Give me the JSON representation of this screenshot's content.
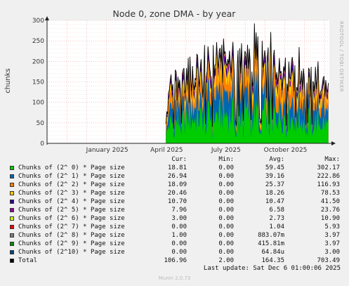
{
  "chart_data": {
    "type": "area",
    "title": "Node 0, zone DMA - by year",
    "ylabel": "chunks",
    "side_label": "RRDTOOL / TOBI OETIKER",
    "ylim": [
      0,
      300
    ],
    "yticks": [
      "0",
      "50",
      "100",
      "150",
      "200",
      "250",
      "300"
    ],
    "xticks": [
      "January 2025",
      "April 2025",
      "July 2025",
      "October 2025"
    ],
    "grid": true,
    "data_start_month": 3.0,
    "data_end_month": 11.2,
    "series": [
      {
        "name": "Chunks of (2^ 0) * Page size",
        "color": "#00cc00",
        "cur": "18.81",
        "min": "0.00",
        "avg": "59.45",
        "max": "302.17"
      },
      {
        "name": "Chunks of (2^ 1) * Page size",
        "color": "#0066b3",
        "cur": "26.94",
        "min": "0.00",
        "avg": "39.16",
        "max": "222.86"
      },
      {
        "name": "Chunks of (2^ 2) * Page size",
        "color": "#ff8000",
        "cur": "18.09",
        "min": "0.00",
        "avg": "25.37",
        "max": "116.93"
      },
      {
        "name": "Chunks of (2^ 3) * Page size",
        "color": "#ffcc00",
        "cur": "20.46",
        "min": "0.00",
        "avg": "18.26",
        "max": "78.53"
      },
      {
        "name": "Chunks of (2^ 4) * Page size",
        "color": "#330099",
        "cur": "10.70",
        "min": "0.00",
        "avg": "10.47",
        "max": "41.50"
      },
      {
        "name": "Chunks of (2^ 5) * Page size",
        "color": "#990099",
        "cur": "7.96",
        "min": "0.00",
        "avg": "6.58",
        "max": "23.76"
      },
      {
        "name": "Chunks of (2^ 6) * Page size",
        "color": "#ccff00",
        "cur": "3.00",
        "min": "0.00",
        "avg": "2.73",
        "max": "10.90"
      },
      {
        "name": "Chunks of (2^ 7) * Page size",
        "color": "#ff0000",
        "cur": "0.00",
        "min": "0.00",
        "avg": "1.04",
        "max": "5.93"
      },
      {
        "name": "Chunks of (2^ 8) * Page size",
        "color": "#808080",
        "cur": "1.00",
        "min": "0.00",
        "avg": "883.07m",
        "max": "3.97"
      },
      {
        "name": "Chunks of (2^ 9) * Page size",
        "color": "#008f00",
        "cur": "0.00",
        "min": "0.00",
        "avg": "415.81m",
        "max": "3.97"
      },
      {
        "name": "Chunks of (2^10) * Page size",
        "color": "#00487d",
        "cur": "0.00",
        "min": "0.00",
        "avg": "64.84u",
        "max": "3.00"
      },
      {
        "name": "Total",
        "color": "#000000",
        "cur": "106.96",
        "min": "2.00",
        "avg": "164.35",
        "max": "703.49"
      }
    ]
  },
  "legend_headers": {
    "cur": "Cur:",
    "min": "Min:",
    "avg": "Avg:",
    "max": "Max:"
  },
  "last_update": "Last update: Sat Dec  6 01:00:06 2025",
  "version": "Munin 2.0.73"
}
